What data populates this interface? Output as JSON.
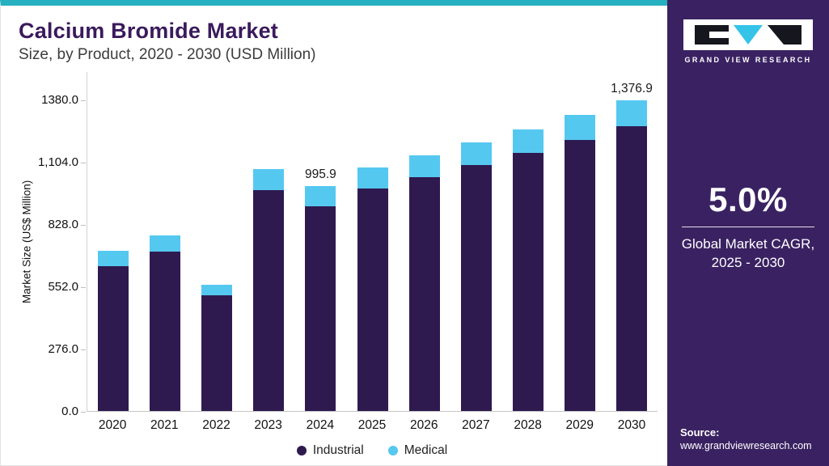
{
  "header": {
    "title": "Calcium Bromide Market",
    "subtitle": "Size, by Product, 2020 - 2030 (USD Million)"
  },
  "chart_data": {
    "type": "bar",
    "stacked": true,
    "title": "Calcium Bromide Market Size, by Product, 2020 - 2030 (USD Million)",
    "categories": [
      "2020",
      "2021",
      "2022",
      "2023",
      "2024",
      "2025",
      "2026",
      "2027",
      "2028",
      "2029",
      "2030"
    ],
    "series": [
      {
        "name": "Industrial",
        "color": "#2f1a4f",
        "values": [
          642,
          706,
          514,
          978,
          908,
          986,
          1036,
          1088,
          1143,
          1200,
          1260
        ]
      },
      {
        "name": "Medical",
        "color": "#55c8f0",
        "values": [
          68,
          72,
          45,
          93,
          87.9,
          93,
          97,
          101,
          106,
          111,
          116.9
        ]
      }
    ],
    "totals": [
      710,
      778,
      559,
      1071,
      995.9,
      1079,
      1133,
      1189,
      1249,
      1311,
      1376.9
    ],
    "annotations": [
      {
        "category": "2024",
        "label": "995.9"
      },
      {
        "category": "2030",
        "label": "1,376.9"
      }
    ],
    "xlabel": "",
    "ylabel": "Market Size (US$ Million)",
    "ylim": [
      0,
      1380
    ],
    "yticks": [
      {
        "value": 1380,
        "label": "1380.0"
      },
      {
        "value": 1104,
        "label": "1,104.0"
      },
      {
        "value": 828,
        "label": "828.0"
      },
      {
        "value": 552,
        "label": "552.0"
      },
      {
        "value": 276,
        "label": "276.0"
      },
      {
        "value": 0,
        "label": "0.0"
      }
    ],
    "grid": false,
    "legend_position": "bottom"
  },
  "legend": {
    "items": [
      {
        "label": "Industrial",
        "color": "#2f1a4f"
      },
      {
        "label": "Medical",
        "color": "#55c8f0"
      }
    ]
  },
  "sidebar": {
    "logo_text": "GRAND VIEW RESEARCH",
    "cagr_value": "5.0%",
    "cagr_label_line1": "Global Market CAGR,",
    "cagr_label_line2": "2025 - 2030",
    "source_label": "Source:",
    "source_url": "www.grandviewresearch.com"
  },
  "colors": {
    "accent_teal": "#27b0c0",
    "title_purple": "#3a1a5c",
    "industrial": "#2f1a4f",
    "medical": "#55c8f0",
    "sidebar_background": "#3a2262",
    "logo_triangle_cyan": "#35c4e8",
    "logo_glyph_black": "#16161e"
  }
}
